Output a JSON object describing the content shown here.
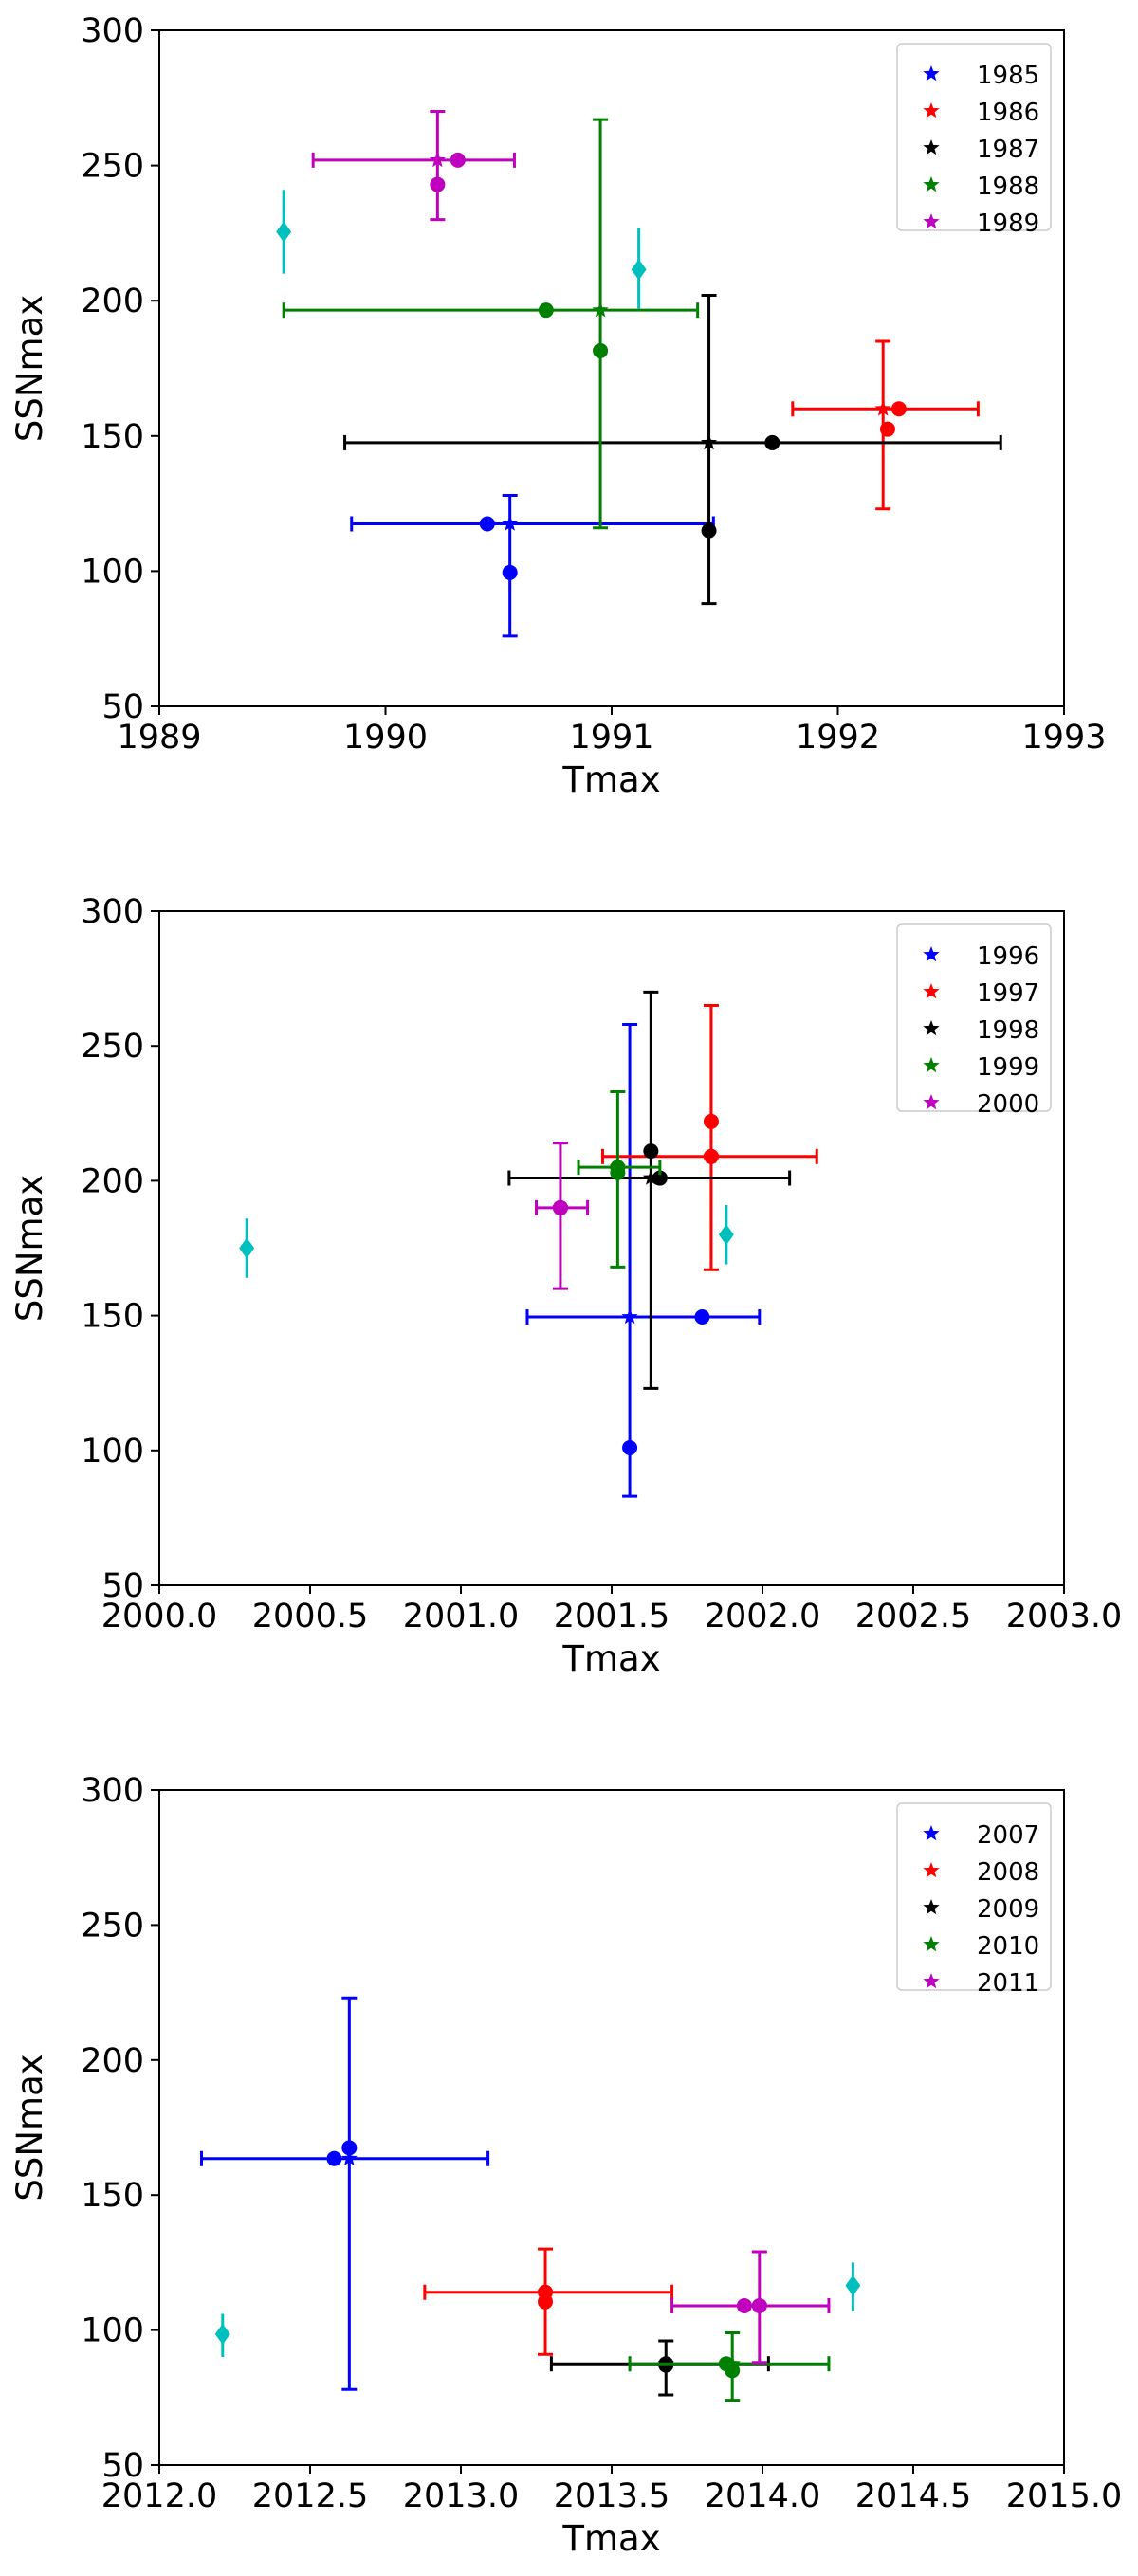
{
  "chart_data": [
    {
      "type": "scatter",
      "xlabel": "Tmax",
      "ylabel": "SSNmax",
      "xlim": [
        1989,
        1993
      ],
      "ylim": [
        50,
        300
      ],
      "xticks": [
        "1989",
        "1990",
        "1991",
        "1992",
        "1993"
      ],
      "yticks": [
        "50",
        "100",
        "150",
        "200",
        "250",
        "300"
      ],
      "legend": "top-right",
      "series": [
        {
          "name": "1985",
          "color": "#0000ff",
          "star": {
            "x": 1990.55,
            "y": 117.5,
            "xerr": [
              1989.85,
              1991.45
            ],
            "yerr": [
              76,
              128
            ]
          },
          "points": [
            {
              "x": 1990.45,
              "y": 117.5
            },
            {
              "x": 1990.55,
              "y": 99.5
            }
          ]
        },
        {
          "name": "1986",
          "color": "#ff0000",
          "star": {
            "x": 1992.2,
            "y": 160,
            "xerr": [
              1991.8,
              1992.62
            ],
            "yerr": [
              123,
              185
            ]
          },
          "points": [
            {
              "x": 1992.27,
              "y": 160
            },
            {
              "x": 1992.22,
              "y": 152.5
            }
          ]
        },
        {
          "name": "1987",
          "color": "#000000",
          "star": {
            "x": 1991.43,
            "y": 147.5,
            "xerr": [
              1989.82,
              1992.72
            ],
            "yerr": [
              88,
              202
            ]
          },
          "points": [
            {
              "x": 1991.71,
              "y": 147.5
            },
            {
              "x": 1991.43,
              "y": 115
            }
          ]
        },
        {
          "name": "1988",
          "color": "#008000",
          "star": {
            "x": 1990.95,
            "y": 196.5,
            "xerr": [
              1989.55,
              1991.38
            ],
            "yerr": [
              116,
              267
            ]
          },
          "points": [
            {
              "x": 1990.71,
              "y": 196.5
            },
            {
              "x": 1990.95,
              "y": 181.5
            }
          ]
        },
        {
          "name": "1989",
          "color": "#bf00bf",
          "star": {
            "x": 1990.23,
            "y": 252,
            "xerr": [
              1989.68,
              1990.57
            ],
            "yerr": [
              230,
              270
            ]
          },
          "points": [
            {
              "x": 1990.32,
              "y": 252
            },
            {
              "x": 1990.23,
              "y": 243
            }
          ]
        }
      ],
      "cyan_markers": [
        {
          "x": 1989.55,
          "y": 225.5,
          "yerr": [
            210,
            241
          ]
        },
        {
          "x": 1991.12,
          "y": 211.5,
          "yerr": [
            197,
            227
          ]
        }
      ]
    },
    {
      "type": "scatter",
      "xlabel": "Tmax",
      "ylabel": "SSNmax",
      "xlim": [
        2000,
        2003
      ],
      "ylim": [
        50,
        300
      ],
      "xticks": [
        "2000.0",
        "2000.5",
        "2001.0",
        "2001.5",
        "2002.0",
        "2002.5",
        "2003.0"
      ],
      "yticks": [
        "50",
        "100",
        "150",
        "200",
        "250",
        "300"
      ],
      "legend": "top-right",
      "series": [
        {
          "name": "1996",
          "color": "#0000ff",
          "star": {
            "x": 2001.56,
            "y": 149.5,
            "xerr": [
              2001.22,
              2001.99
            ],
            "yerr": [
              83,
              258
            ]
          },
          "points": [
            {
              "x": 2001.8,
              "y": 149.5
            },
            {
              "x": 2001.56,
              "y": 101
            }
          ]
        },
        {
          "name": "1997",
          "color": "#ff0000",
          "star": {
            "x": 2001.83,
            "y": 209,
            "xerr": [
              2001.47,
              2002.18
            ],
            "yerr": [
              167,
              265
            ]
          },
          "points": [
            {
              "x": 2001.83,
              "y": 209
            },
            {
              "x": 2001.83,
              "y": 222
            }
          ]
        },
        {
          "name": "1998",
          "color": "#000000",
          "star": {
            "x": 2001.63,
            "y": 201,
            "xerr": [
              2001.16,
              2002.09
            ],
            "yerr": [
              123,
              270
            ]
          },
          "points": [
            {
              "x": 2001.66,
              "y": 201
            },
            {
              "x": 2001.63,
              "y": 211
            }
          ]
        },
        {
          "name": "1999",
          "color": "#008000",
          "star": {
            "x": 2001.52,
            "y": 205,
            "xerr": [
              2001.39,
              2001.66
            ],
            "yerr": [
              168,
              233
            ]
          },
          "points": [
            {
              "x": 2001.52,
              "y": 205
            },
            {
              "x": 2001.52,
              "y": 203
            }
          ]
        },
        {
          "name": "2000",
          "color": "#bf00bf",
          "star": {
            "x": 2001.33,
            "y": 190,
            "xerr": [
              2001.25,
              2001.42
            ],
            "yerr": [
              160,
              214
            ]
          },
          "points": [
            {
              "x": 2001.33,
              "y": 190
            },
            {
              "x": 2001.33,
              "y": 190
            }
          ]
        }
      ],
      "cyan_markers": [
        {
          "x": 2000.29,
          "y": 175,
          "yerr": [
            164,
            186
          ]
        },
        {
          "x": 2001.88,
          "y": 180,
          "yerr": [
            169,
            191
          ]
        }
      ]
    },
    {
      "type": "scatter",
      "xlabel": "Tmax",
      "ylabel": "SSNmax",
      "xlim": [
        2012,
        2015
      ],
      "ylim": [
        50,
        300
      ],
      "xticks": [
        "2012.0",
        "2012.5",
        "2013.0",
        "2013.5",
        "2014.0",
        "2014.5",
        "2015.0"
      ],
      "yticks": [
        "50",
        "100",
        "150",
        "200",
        "250",
        "300"
      ],
      "legend": "top-right",
      "series": [
        {
          "name": "2007",
          "color": "#0000ff",
          "star": {
            "x": 2012.63,
            "y": 163.5,
            "xerr": [
              2012.14,
              2013.09
            ],
            "yerr": [
              78,
              223
            ]
          },
          "points": [
            {
              "x": 2012.58,
              "y": 163.5
            },
            {
              "x": 2012.63,
              "y": 167.5
            }
          ]
        },
        {
          "name": "2008",
          "color": "#ff0000",
          "star": {
            "x": 2013.28,
            "y": 114,
            "xerr": [
              2012.88,
              2013.7
            ],
            "yerr": [
              91,
              130
            ]
          },
          "points": [
            {
              "x": 2013.28,
              "y": 114
            },
            {
              "x": 2013.28,
              "y": 110.5
            }
          ]
        },
        {
          "name": "2009",
          "color": "#000000",
          "star": {
            "x": 2013.68,
            "y": 87.5,
            "xerr": [
              2013.3,
              2014.02
            ],
            "yerr": [
              76,
              96
            ]
          },
          "points": [
            {
              "x": 2013.68,
              "y": 87.5
            },
            {
              "x": 2013.68,
              "y": 87
            }
          ]
        },
        {
          "name": "2010",
          "color": "#008000",
          "star": {
            "x": 2013.9,
            "y": 87.5,
            "xerr": [
              2013.56,
              2014.22
            ],
            "yerr": [
              74,
              99
            ]
          },
          "points": [
            {
              "x": 2013.88,
              "y": 87.5
            },
            {
              "x": 2013.9,
              "y": 85
            }
          ]
        },
        {
          "name": "2011",
          "color": "#bf00bf",
          "star": {
            "x": 2013.99,
            "y": 109,
            "xerr": [
              2013.7,
              2014.22
            ],
            "yerr": [
              88,
              129
            ]
          },
          "points": [
            {
              "x": 2013.94,
              "y": 109
            },
            {
              "x": 2013.99,
              "y": 109
            }
          ]
        }
      ],
      "cyan_markers": [
        {
          "x": 2012.21,
          "y": 98.5,
          "yerr": [
            90,
            106
          ]
        },
        {
          "x": 2014.3,
          "y": 116.5,
          "yerr": [
            107,
            125
          ]
        }
      ]
    }
  ],
  "colors": {
    "cyan": "#00bfbf",
    "axes": "#000000",
    "legend_border": "#cccccc"
  }
}
